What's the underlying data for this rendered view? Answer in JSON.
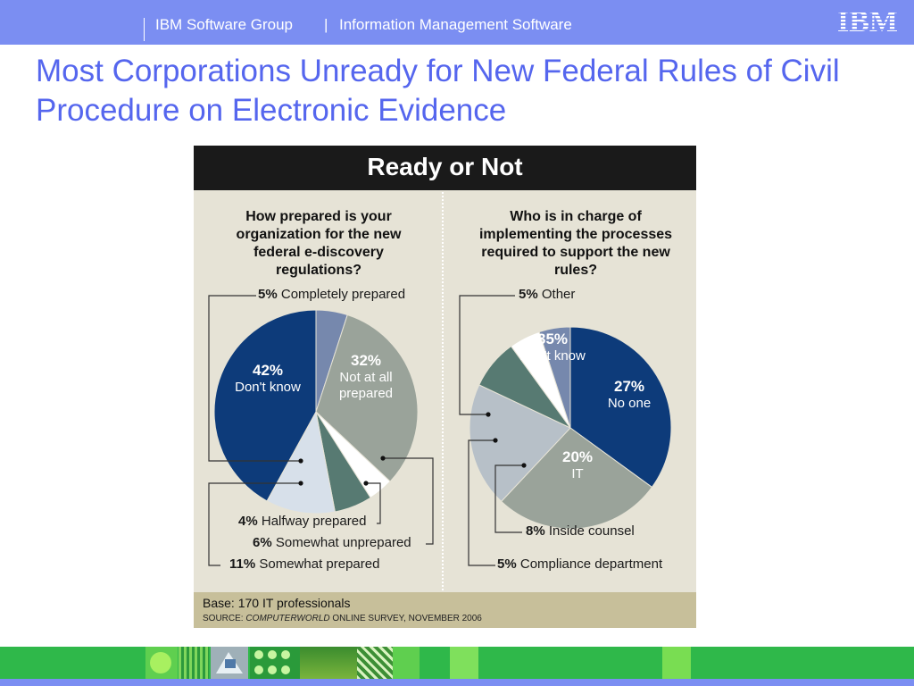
{
  "header": {
    "group": "IBM Software Group",
    "separator": "|",
    "division": "Information Management Software",
    "logo_text": "IBM"
  },
  "slide_title": "Most Corporations Unready for New Federal Rules of Civil Procedure on Electronic Evidence",
  "colors": {
    "banner": "#7b8ef2",
    "title": "#5566ee",
    "dark_blue": "#0d3b7a",
    "gray": "#9aa39a",
    "slate_blue": "#7688ad",
    "white": "#ffffff",
    "teal": "#577a72",
    "light_blue": "#d7e0ea",
    "light_gray_blue": "#b7c0c8"
  },
  "chart_data": [
    {
      "type": "pie",
      "banner_title": "Ready or Not",
      "title": "How prepared is your organization for the new federal e-discovery regulations?",
      "slices": [
        {
          "label": "Completely prepared",
          "value": 5,
          "color": "#7688ad"
        },
        {
          "label": "Not at all prepared",
          "value": 32,
          "color": "#9aa39a"
        },
        {
          "label": "Halfway prepared",
          "value": 4,
          "color": "#ffffff"
        },
        {
          "label": "Somewhat unprepared",
          "value": 6,
          "color": "#577a72"
        },
        {
          "label": "Somewhat prepared",
          "value": 11,
          "color": "#d7e0ea"
        },
        {
          "label": "Don't know",
          "value": 42,
          "color": "#0d3b7a"
        }
      ]
    },
    {
      "type": "pie",
      "title": "Who is in charge of implementing the processes required to support the new rules?",
      "slices": [
        {
          "label": "Don't know",
          "value": 35,
          "color": "#0d3b7a"
        },
        {
          "label": "No one",
          "value": 27,
          "color": "#9aa39a"
        },
        {
          "label": "IT",
          "value": 20,
          "color": "#b7c0c8"
        },
        {
          "label": "Inside counsel",
          "value": 8,
          "color": "#577a72"
        },
        {
          "label": "Compliance department",
          "value": 5,
          "color": "#ffffff"
        },
        {
          "label": "Other",
          "value": 5,
          "color": "#7688ad"
        }
      ]
    }
  ],
  "figure_text": {
    "left": {
      "completely": {
        "pct": "5%",
        "text": "Completely prepared"
      },
      "not_at_all": {
        "pct": "32%",
        "line1": "Not at all",
        "line2": "prepared"
      },
      "dont_know": {
        "pct": "42%",
        "text": "Don't know"
      },
      "halfway": {
        "pct": "4%",
        "text": "Halfway prepared"
      },
      "somewhat_unprepared": {
        "pct": "6%",
        "text": "Somewhat unprepared"
      },
      "somewhat_prepared": {
        "pct": "11%",
        "text": "Somewhat prepared"
      }
    },
    "right": {
      "other": {
        "pct": "5%",
        "text": "Other"
      },
      "dont_know": {
        "pct": "35%",
        "text": "Don't know"
      },
      "no_one": {
        "pct": "27%",
        "text": "No one"
      },
      "it": {
        "pct": "20%",
        "text": "IT"
      },
      "inside_counsel": {
        "pct": "8%",
        "text": "Inside counsel"
      },
      "compliance": {
        "pct": "5%",
        "text": "Compliance department"
      }
    },
    "base": "Base: 170 IT professionals",
    "source_prefix": "SOURCE:",
    "source_pub": "COMPUTERWORLD",
    "source_rest": "ONLINE SURVEY, NOVEMBER 2006"
  }
}
